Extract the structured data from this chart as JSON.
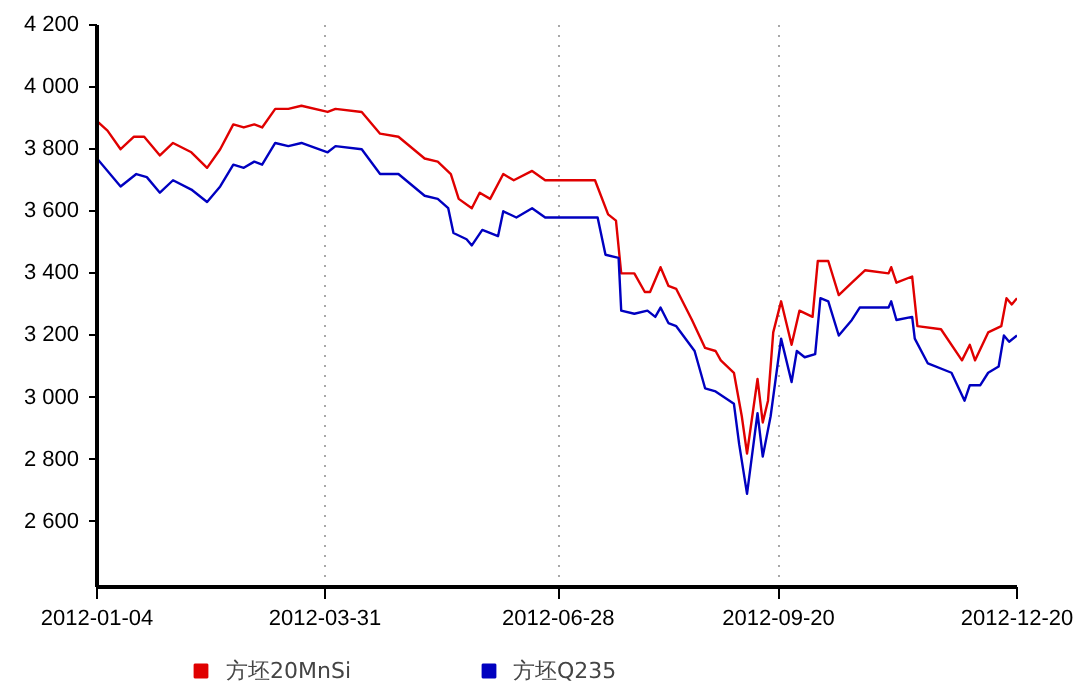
{
  "chart_data": {
    "type": "line",
    "xlim": [
      "2012-01-04",
      "2012-12-20"
    ],
    "xticks": [
      "2012-01-04",
      "2012-03-31",
      "2012-06-28",
      "2012-09-20",
      "2012-12-20"
    ],
    "ylim": [
      2390,
      4200
    ],
    "yticks": [
      {
        "value": 2600,
        "label": "2 600"
      },
      {
        "value": 2800,
        "label": "2 800"
      },
      {
        "value": 3000,
        "label": "3 000"
      },
      {
        "value": 3200,
        "label": "3 200"
      },
      {
        "value": 3400,
        "label": "3 400"
      },
      {
        "value": 3600,
        "label": "3 600"
      },
      {
        "value": 3800,
        "label": "3 800"
      },
      {
        "value": 4000,
        "label": "4 000"
      },
      {
        "value": 4200,
        "label": "4 200"
      }
    ],
    "grid": "x",
    "legend": "bottom",
    "marker": "none",
    "line_style": "solid",
    "series": [
      {
        "name": "方坯20MnSi",
        "color": "#e00000",
        "x": [
          "2012-01-04",
          "2012-01-08",
          "2012-01-13",
          "2012-01-18",
          "2012-01-22",
          "2012-01-28",
          "2012-02-02",
          "2012-02-09",
          "2012-02-15",
          "2012-02-20",
          "2012-02-25",
          "2012-02-29",
          "2012-03-04",
          "2012-03-07",
          "2012-03-12",
          "2012-03-17",
          "2012-03-22",
          "2012-04-01",
          "2012-04-04",
          "2012-04-14",
          "2012-04-21",
          "2012-04-28",
          "2012-05-08",
          "2012-05-13",
          "2012-05-18",
          "2012-05-21",
          "2012-05-26",
          "2012-05-29",
          "2012-06-02",
          "2012-06-07",
          "2012-06-11",
          "2012-06-18",
          "2012-06-23",
          "2012-07-05",
          "2012-07-08",
          "2012-07-12",
          "2012-07-17",
          "2012-07-20",
          "2012-07-22",
          "2012-07-27",
          "2012-07-31",
          "2012-08-02",
          "2012-08-06",
          "2012-08-09",
          "2012-08-12",
          "2012-08-18",
          "2012-08-23",
          "2012-08-27",
          "2012-08-29",
          "2012-09-03",
          "2012-09-06",
          "2012-09-08",
          "2012-09-12",
          "2012-09-14",
          "2012-09-16",
          "2012-09-18",
          "2012-09-21",
          "2012-09-25",
          "2012-09-28",
          "2012-10-03",
          "2012-10-05",
          "2012-10-09",
          "2012-10-13",
          "2012-10-18",
          "2012-10-23",
          "2012-11-01",
          "2012-11-02",
          "2012-11-04",
          "2012-11-10",
          "2012-11-12",
          "2012-11-21",
          "2012-11-29",
          "2012-12-02",
          "2012-12-04",
          "2012-12-09",
          "2012-12-14",
          "2012-12-16",
          "2012-12-18",
          "2012-12-20"
        ],
        "values": [
          3890,
          3860,
          3800,
          3840,
          3840,
          3780,
          3820,
          3790,
          3740,
          3800,
          3880,
          3870,
          3880,
          3870,
          3930,
          3930,
          3940,
          3920,
          3930,
          3920,
          3850,
          3840,
          3770,
          3760,
          3720,
          3640,
          3610,
          3660,
          3640,
          3720,
          3700,
          3730,
          3700,
          3700,
          3700,
          3700,
          3590,
          3570,
          3400,
          3400,
          3340,
          3340,
          3420,
          3360,
          3350,
          3250,
          3160,
          3150,
          3120,
          3080,
          2940,
          2820,
          3060,
          2920,
          2990,
          3210,
          3310,
          3170,
          3280,
          3260,
          3440,
          3440,
          3330,
          3370,
          3410,
          3400,
          3420,
          3370,
          3390,
          3230,
          3220,
          3120,
          3170,
          3120,
          3210,
          3230,
          3320,
          3300,
          3320
        ]
      },
      {
        "name": "方坯Q235",
        "color": "#0000c0",
        "x": [
          "2012-01-04",
          "2012-01-13",
          "2012-01-19",
          "2012-01-23",
          "2012-01-28",
          "2012-02-02",
          "2012-02-09",
          "2012-02-15",
          "2012-02-20",
          "2012-02-25",
          "2012-02-29",
          "2012-03-04",
          "2012-03-07",
          "2012-03-12",
          "2012-03-17",
          "2012-03-22",
          "2012-04-01",
          "2012-04-04",
          "2012-04-14",
          "2012-04-21",
          "2012-04-28",
          "2012-05-08",
          "2012-05-13",
          "2012-05-17",
          "2012-05-19",
          "2012-05-24",
          "2012-05-26",
          "2012-05-30",
          "2012-06-05",
          "2012-06-07",
          "2012-06-12",
          "2012-06-18",
          "2012-06-23",
          "2012-07-04",
          "2012-07-13",
          "2012-07-16",
          "2012-07-21",
          "2012-07-22",
          "2012-07-27",
          "2012-08-01",
          "2012-08-04",
          "2012-08-06",
          "2012-08-09",
          "2012-08-12",
          "2012-08-19",
          "2012-08-23",
          "2012-08-27",
          "2012-09-03",
          "2012-09-05",
          "2012-09-08",
          "2012-09-12",
          "2012-09-14",
          "2012-09-17",
          "2012-09-21",
          "2012-09-25",
          "2012-09-27",
          "2012-09-30",
          "2012-10-04",
          "2012-10-06",
          "2012-10-09",
          "2012-10-13",
          "2012-10-18",
          "2012-10-21",
          "2012-11-01",
          "2012-11-02",
          "2012-11-04",
          "2012-11-10",
          "2012-11-11",
          "2012-11-16",
          "2012-11-25",
          "2012-11-30",
          "2012-12-02",
          "2012-12-06",
          "2012-12-09",
          "2012-12-13",
          "2012-12-15",
          "2012-12-17",
          "2012-12-20"
        ],
        "values": [
          3770,
          3680,
          3720,
          3710,
          3660,
          3700,
          3670,
          3630,
          3680,
          3750,
          3740,
          3760,
          3750,
          3820,
          3810,
          3820,
          3790,
          3810,
          3800,
          3720,
          3720,
          3650,
          3640,
          3610,
          3530,
          3510,
          3490,
          3540,
          3520,
          3600,
          3580,
          3610,
          3580,
          3580,
          3580,
          3460,
          3450,
          3280,
          3270,
          3280,
          3260,
          3290,
          3240,
          3230,
          3150,
          3030,
          3020,
          2980,
          2850,
          2690,
          2950,
          2810,
          2940,
          3190,
          3050,
          3150,
          3130,
          3140,
          3320,
          3310,
          3200,
          3250,
          3290,
          3290,
          3310,
          3250,
          3260,
          3190,
          3110,
          3080,
          2990,
          3040,
          3040,
          3080,
          3100,
          3200,
          3180,
          3200
        ]
      }
    ]
  }
}
